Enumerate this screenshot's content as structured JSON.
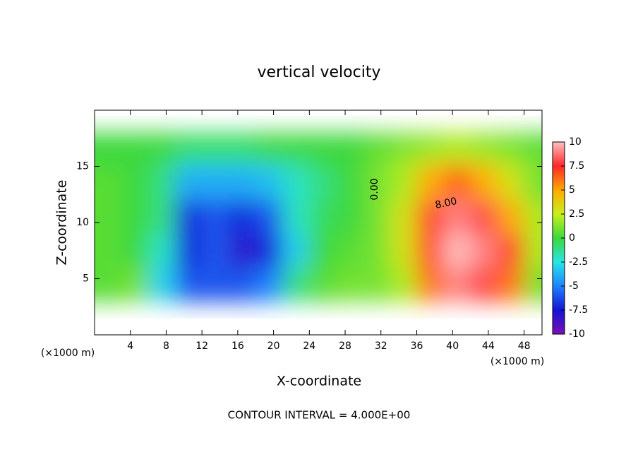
{
  "chart_data": {
    "type": "contour",
    "title": "vertical velocity",
    "xlabel": "X-coordinate",
    "ylabel": "Z-coordinate",
    "xunit": "(×1000 m)",
    "yunit": "(×1000 m)",
    "footer": "CONTOUR INTERVAL = 4.000E+00",
    "contour_labels": [
      "0.00",
      "8.00"
    ],
    "xlim": [
      0,
      50
    ],
    "ylim": [
      0,
      20
    ],
    "xticks": [
      4,
      8,
      12,
      16,
      20,
      24,
      28,
      32,
      36,
      40,
      44,
      48
    ],
    "yticks": [
      5,
      10,
      15
    ],
    "x": [
      1.5,
      4.5,
      7.5,
      10.5,
      13.5,
      16.5,
      19.5,
      22.5,
      25.5,
      28.5,
      31.5,
      34.5,
      37.5,
      40.5,
      43.5,
      46.5,
      49.5
    ],
    "z": [
      1.5,
      4.5,
      7.5,
      10.5,
      13.5,
      16.5,
      19.5
    ],
    "values": [
      [
        1,
        1.5,
        -2,
        -5,
        -5,
        -4,
        -3,
        0,
        0.5,
        1,
        -2,
        1,
        4,
        8,
        9,
        5,
        1
      ],
      [
        0.5,
        1,
        -3,
        -6,
        -6,
        -6,
        -5,
        -1,
        0.5,
        1,
        1,
        2,
        6,
        9,
        8,
        6,
        1
      ],
      [
        0.5,
        0,
        -2,
        -7,
        -6,
        -8,
        -7,
        -3,
        0,
        0.5,
        1,
        3,
        7,
        10,
        9,
        7,
        2
      ],
      [
        0.5,
        0,
        -1,
        -7,
        -6,
        -7,
        -6,
        -2,
        -0.5,
        0,
        1,
        3,
        7,
        9,
        8,
        5,
        2
      ],
      [
        0.5,
        0,
        -1,
        -4,
        -4,
        -4,
        -3.5,
        -2,
        -1,
        0,
        1,
        2,
        5,
        6.5,
        5,
        3,
        1
      ],
      [
        0,
        0,
        -0.5,
        -2,
        -2,
        -2,
        -1.5,
        -1,
        0,
        0,
        1,
        2,
        3,
        3.5,
        3,
        2,
        1
      ],
      [
        0,
        0,
        0,
        -0.5,
        -0.5,
        -0.5,
        0,
        0,
        0,
        0,
        0.5,
        1,
        1.5,
        2,
        1.5,
        1,
        0.5
      ]
    ],
    "colorbar": {
      "ticks": [
        -10,
        -7.5,
        -5,
        -2.5,
        0,
        2.5,
        5,
        7.5,
        10
      ],
      "colors": [
        "#7b0fb5",
        "#1414d2",
        "#1e82ff",
        "#28e6e6",
        "#3cd83c",
        "#c8f01e",
        "#ffaa00",
        "#ff2828",
        "#ffc0c0"
      ]
    }
  }
}
